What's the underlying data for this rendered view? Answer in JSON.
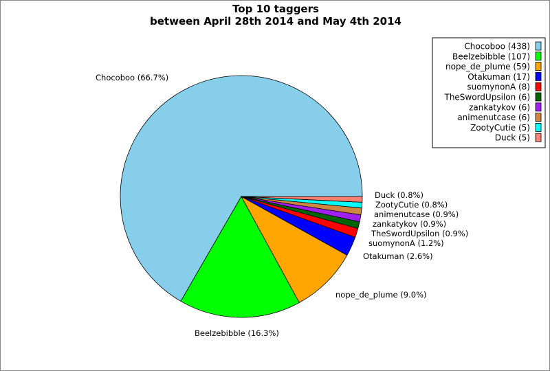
{
  "chart_data": {
    "type": "pie",
    "title": [
      "Top 10 taggers",
      "between April 28th 2014 and May 4th 2014"
    ],
    "legend_position": "top-right",
    "slices": [
      {
        "name": "Chocoboo",
        "value": 438,
        "percent_label": "Chocoboo (66.7%)",
        "legend_label": "Chocoboo (438)",
        "color": "#87CEEB"
      },
      {
        "name": "Beelzebibble",
        "value": 107,
        "percent_label": "Beelzebibble (16.3%)",
        "legend_label": "Beelzebibble (107)",
        "color": "#00FF00"
      },
      {
        "name": "nope_de_plume",
        "value": 59,
        "percent_label": "nope_de_plume (9.0%)",
        "legend_label": "nope_de_plume (59)",
        "color": "#FFA500"
      },
      {
        "name": "Otakuman",
        "value": 17,
        "percent_label": "Otakuman (2.6%)",
        "legend_label": "Otakuman (17)",
        "color": "#0000FF"
      },
      {
        "name": "suomynonA",
        "value": 8,
        "percent_label": "suomynonA (1.2%)",
        "legend_label": "suomynonA (8)",
        "color": "#FF0000"
      },
      {
        "name": "TheSwordUpsilon",
        "value": 6,
        "percent_label": "TheSwordUpsilon (0.9%)",
        "legend_label": "TheSwordUpsilon (6)",
        "color": "#006400"
      },
      {
        "name": "zankatykov",
        "value": 6,
        "percent_label": "zankatykov (0.9%)",
        "legend_label": "zankatykov (6)",
        "color": "#A020F0"
      },
      {
        "name": "animenutcase",
        "value": 6,
        "percent_label": "animenutcase (0.9%)",
        "legend_label": "animenutcase (6)",
        "color": "#CD853F"
      },
      {
        "name": "ZootyCutie",
        "value": 5,
        "percent_label": "ZootyCutie (0.8%)",
        "legend_label": "ZootyCutie (5)",
        "color": "#00FFFF"
      },
      {
        "name": "Duck",
        "value": 5,
        "percent_label": "Duck (0.8%)",
        "legend_label": "Duck (5)",
        "color": "#FA8072"
      }
    ]
  }
}
